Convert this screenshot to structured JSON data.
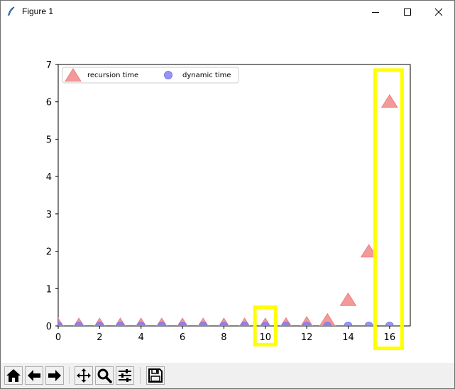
{
  "window": {
    "title": "Figure 1",
    "icon": "feather-icon",
    "controls": [
      "minimize-icon",
      "maximize-icon",
      "close-icon"
    ]
  },
  "chart_data": {
    "type": "scatter",
    "title": "",
    "xlabel": "",
    "ylabel": "",
    "xlim": [
      0,
      17
    ],
    "ylim": [
      0,
      7
    ],
    "xticks": [
      0,
      2,
      4,
      6,
      8,
      10,
      12,
      14,
      16
    ],
    "yticks": [
      0,
      1,
      2,
      3,
      4,
      5,
      6,
      7
    ],
    "grid": false,
    "legend_position": "upper-left",
    "series": [
      {
        "name": "recursion time",
        "marker": "triangle",
        "color": "#f08080",
        "x": [
          0,
          1,
          2,
          3,
          4,
          5,
          6,
          7,
          8,
          9,
          10,
          11,
          12,
          13,
          14,
          15,
          16
        ],
        "y": [
          0,
          0,
          0,
          0,
          0,
          0,
          0,
          0,
          0,
          0,
          0,
          0.01,
          0.04,
          0.12,
          0.67,
          1.97,
          5.98
        ]
      },
      {
        "name": "dynamic time",
        "marker": "circle",
        "color": "#7b7bf0",
        "x": [
          0,
          1,
          2,
          3,
          4,
          5,
          6,
          7,
          8,
          9,
          10,
          11,
          12,
          13,
          14,
          15,
          16
        ],
        "y": [
          0,
          0,
          0,
          0,
          0,
          0,
          0,
          0,
          0,
          0,
          0,
          0,
          0,
          0,
          0,
          0,
          0
        ]
      }
    ],
    "highlight_color": "#ffff00",
    "highlights": [
      {
        "x_from": 9.5,
        "x_to": 10.5,
        "y_from": -0.5,
        "y_to": 0.5
      },
      {
        "x_from": 15.3,
        "x_to": 16.6,
        "y_from": -0.6,
        "y_to": 6.85
      }
    ]
  },
  "toolbar": {
    "buttons": [
      {
        "name": "home-button",
        "icon": "home-icon"
      },
      {
        "name": "back-button",
        "icon": "arrow-left-icon"
      },
      {
        "name": "forward-button",
        "icon": "arrow-right-icon"
      },
      {
        "name": "pan-button",
        "icon": "move-icon"
      },
      {
        "name": "zoom-button",
        "icon": "magnifier-icon"
      },
      {
        "name": "configure-subplots-button",
        "icon": "sliders-icon"
      },
      {
        "name": "save-button",
        "icon": "floppy-disk-icon"
      }
    ]
  }
}
